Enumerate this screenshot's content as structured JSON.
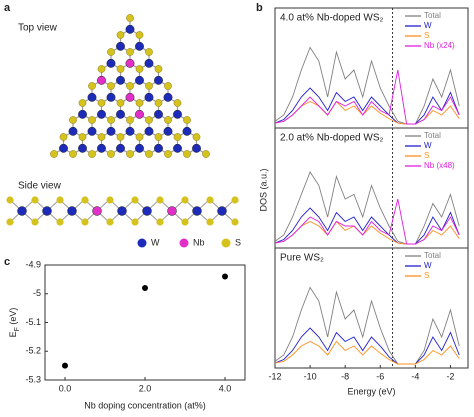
{
  "panel_labels": [
    "a",
    "b",
    "c"
  ],
  "structure": {
    "top_view": "Top view",
    "side_view": "Side view",
    "legend": [
      {
        "name": "W",
        "color": "#1c2bb8"
      },
      {
        "name": "Nb",
        "color": "#e030c8"
      },
      {
        "name": "S",
        "color": "#d6c21c"
      }
    ]
  },
  "dos_ylabel": "DOS (a.u.)",
  "chart_data": [
    {
      "type": "line",
      "title": "4.0 at% Nb-doped WS₂",
      "xlim": [
        -12,
        -1
      ],
      "ylim": [
        0,
        10
      ],
      "vline": -5.3,
      "x": [
        -12,
        -11.5,
        -11,
        -10.5,
        -10,
        -9.5,
        -9,
        -8.5,
        -8,
        -7.5,
        -7,
        -6.5,
        -6,
        -5.5,
        -5,
        -4.5,
        -4,
        -3.5,
        -3,
        -2.5,
        -2,
        -1.5
      ],
      "series": [
        {
          "name": "Total",
          "color": "#808080",
          "values": [
            0.3,
            1,
            3,
            6,
            8.5,
            7,
            3,
            8,
            5,
            6,
            3,
            7,
            4,
            2,
            0.3,
            0,
            0,
            2,
            5,
            3,
            6,
            2
          ]
        },
        {
          "name": "W",
          "color": "#2020d0",
          "values": [
            0.1,
            0.5,
            1.5,
            3,
            4,
            3,
            1.5,
            3.5,
            2.5,
            3,
            1.5,
            3,
            2,
            1,
            0.1,
            0,
            0,
            1,
            3,
            1.5,
            3.5,
            1
          ]
        },
        {
          "name": "S",
          "color": "#ff9020",
          "values": [
            0.1,
            0.3,
            1,
            2,
            2.5,
            2,
            1,
            2.5,
            1.5,
            2,
            1,
            2,
            1.2,
            0.6,
            0.1,
            0,
            0,
            0.5,
            1.5,
            1,
            2,
            0.6
          ]
        },
        {
          "name": "Nb (x24)",
          "color": "#e020e0",
          "values": [
            0.1,
            0.3,
            1,
            2,
            3,
            2,
            1,
            2.5,
            2,
            2.5,
            1,
            2.5,
            1.5,
            1,
            6,
            0,
            0,
            0.5,
            2,
            1.5,
            3,
            1
          ]
        }
      ]
    },
    {
      "type": "line",
      "title": "2.0 at% Nb-doped WS₂",
      "xlim": [
        -12,
        -1
      ],
      "ylim": [
        0,
        10
      ],
      "vline": -5.3,
      "x": [
        -12,
        -11.5,
        -11,
        -10.5,
        -10,
        -9.5,
        -9,
        -8.5,
        -8,
        -7.5,
        -7,
        -6.5,
        -6,
        -5.5,
        -5,
        -4.5,
        -4,
        -3.5,
        -3,
        -2.5,
        -2,
        -1.5
      ],
      "series": [
        {
          "name": "Total",
          "color": "#808080",
          "values": [
            0.3,
            1,
            3,
            5.5,
            8,
            6.5,
            3,
            7.5,
            5,
            5.5,
            3,
            6.5,
            4,
            2,
            0.3,
            0,
            0,
            2,
            4.5,
            3,
            5.5,
            2
          ]
        },
        {
          "name": "W",
          "color": "#2020d0",
          "values": [
            0.1,
            0.5,
            1.5,
            3,
            4,
            3,
            1.5,
            3.5,
            2.5,
            3,
            1.5,
            3,
            2,
            1,
            0.1,
            0,
            0,
            1,
            3,
            1.5,
            3.5,
            1
          ]
        },
        {
          "name": "S",
          "color": "#ff9020",
          "values": [
            0.1,
            0.3,
            1,
            2,
            2.5,
            2,
            1,
            2.5,
            1.5,
            2,
            1,
            2,
            1.2,
            0.6,
            0.1,
            0,
            0,
            0.5,
            1.5,
            1,
            2,
            0.6
          ]
        },
        {
          "name": "Nb (x48)",
          "color": "#e020e0",
          "values": [
            0.1,
            0.3,
            1,
            2,
            3,
            2.5,
            1,
            2.5,
            2,
            2,
            1,
            2.5,
            1.5,
            1,
            5,
            0,
            0,
            0.5,
            2,
            1.5,
            3,
            1
          ]
        }
      ]
    },
    {
      "type": "line",
      "title": "Pure WS₂",
      "xlim": [
        -12,
        -1
      ],
      "ylim": [
        0,
        10
      ],
      "vline": -5.3,
      "xlabel": "Energy (eV)",
      "xticks": [
        -12,
        -10,
        -8,
        -6,
        -4,
        -2
      ],
      "x": [
        -12,
        -11.5,
        -11,
        -10.5,
        -10,
        -9.5,
        -9,
        -8.5,
        -8,
        -7.5,
        -7,
        -6.5,
        -6,
        -5.5,
        -5,
        -4.5,
        -4,
        -3.5,
        -3,
        -2.5,
        -2,
        -1.5
      ],
      "series": [
        {
          "name": "Total",
          "color": "#808080",
          "values": [
            0.3,
            1,
            3,
            6,
            8.5,
            7,
            3,
            8,
            5,
            6,
            3,
            7,
            4,
            1.5,
            0,
            0,
            0,
            1.5,
            5,
            3,
            6,
            2
          ]
        },
        {
          "name": "W",
          "color": "#2020d0",
          "values": [
            0.1,
            0.5,
            1.5,
            3,
            4,
            3,
            1.5,
            3.5,
            2.5,
            3,
            1.5,
            3,
            2,
            0.8,
            0,
            0,
            0,
            1,
            3,
            1.5,
            3.5,
            1
          ]
        },
        {
          "name": "S",
          "color": "#ff9020",
          "values": [
            0.1,
            0.3,
            1,
            2,
            2.5,
            2,
            1,
            2.5,
            1.5,
            2,
            1,
            2,
            1.2,
            0.5,
            0,
            0,
            0,
            0.5,
            1.5,
            1,
            2,
            0.6
          ]
        }
      ]
    },
    {
      "type": "scatter",
      "xlabel": "Nb doping concentration (at%)",
      "ylabel": [
        "E",
        "F",
        " (eV)"
      ],
      "x": [
        0,
        2,
        4
      ],
      "values": [
        -5.25,
        -4.98,
        -4.94
      ],
      "color": "#000000",
      "xlim": [
        -0.5,
        4.5
      ],
      "ylim": [
        -5.3,
        -4.9
      ],
      "xticks": [
        {
          "value": 0,
          "label": "0.0"
        },
        {
          "value": 2,
          "label": "2.0"
        },
        {
          "value": 4,
          "label": "4.0"
        }
      ],
      "yticks": [
        -5.3,
        -5.2,
        -5.1,
        -5,
        -4.9
      ]
    }
  ]
}
